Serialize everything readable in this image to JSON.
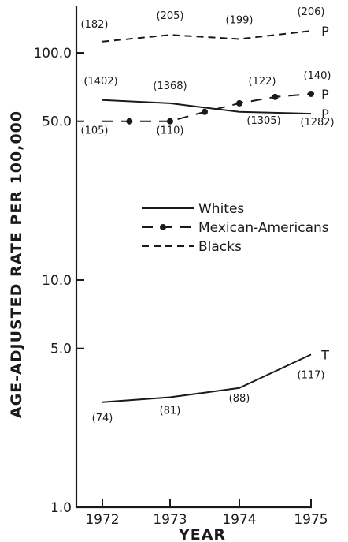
{
  "chart_data": {
    "type": "line",
    "title": "",
    "xlabel": "YEAR",
    "ylabel": "AGE-ADJUSTED RATE PER 100,000",
    "y_scale": "log",
    "ylim": [
      1.0,
      180
    ],
    "y_ticks": [
      {
        "value": 1.0,
        "label": "1.0"
      },
      {
        "value": 5.0,
        "label": "5.0"
      },
      {
        "value": 10.0,
        "label": "10.0"
      },
      {
        "value": 50.0,
        "label": "50.0"
      },
      {
        "value": 100.0,
        "label": "100.0"
      }
    ],
    "x_ticks": [
      {
        "value": 1972,
        "label": "1972"
      },
      {
        "value": 1973,
        "label": "1973"
      },
      {
        "value": 1974,
        "label": "1974"
      },
      {
        "value": 1975,
        "label": "1975"
      }
    ],
    "legend": {
      "placement": "middle-right",
      "entries": [
        {
          "series": "whites_p",
          "label": "Whites"
        },
        {
          "series": "mexican_p",
          "label": "Mexican-Americans"
        },
        {
          "series": "blacks_p",
          "label": "Blacks"
        }
      ]
    },
    "series": [
      {
        "id": "blacks_p",
        "name": "Blacks",
        "style": "dashed",
        "end_label": "P",
        "points": [
          {
            "x": 1972,
            "y": 112
          },
          {
            "x": 1973,
            "y": 120
          },
          {
            "x": 1974,
            "y": 115
          },
          {
            "x": 1975,
            "y": 125
          }
        ],
        "labels": [
          {
            "x": 1972,
            "text": "(182)"
          },
          {
            "x": 1973,
            "text": "(205)"
          },
          {
            "x": 1974,
            "text": "(199)"
          },
          {
            "x": 1975,
            "text": "(206)"
          }
        ]
      },
      {
        "id": "whites_p",
        "name": "Whites",
        "style": "solid",
        "end_label": "P",
        "points": [
          {
            "x": 1972,
            "y": 62
          },
          {
            "x": 1973,
            "y": 60
          },
          {
            "x": 1974,
            "y": 55
          },
          {
            "x": 1975,
            "y": 54
          }
        ],
        "labels": [
          {
            "x": 1972,
            "text": "(1402)"
          },
          {
            "x": 1973,
            "text": "(1368)"
          },
          {
            "x": 1974,
            "text": "(1305)"
          },
          {
            "x": 1975,
            "text": "(1282)"
          }
        ]
      },
      {
        "id": "mexican_p",
        "name": "Mexican-Americans",
        "style": "dash-dot",
        "end_label": "P",
        "points": [
          {
            "x": 1972,
            "y": 50
          },
          {
            "x": 1972.4,
            "y": 50
          },
          {
            "x": 1973,
            "y": 50
          },
          {
            "x": 1973.5,
            "y": 55
          },
          {
            "x": 1974,
            "y": 60
          },
          {
            "x": 1974.5,
            "y": 64
          },
          {
            "x": 1975,
            "y": 66
          }
        ],
        "labels": [
          {
            "x": 1972,
            "text": "(105)"
          },
          {
            "x": 1973,
            "text": "(110)"
          },
          {
            "x": 1974,
            "text": "(122)"
          },
          {
            "x": 1975,
            "text": "(140)"
          }
        ]
      },
      {
        "id": "whites_t",
        "name": "Whites",
        "style": "solid",
        "end_label": "T",
        "points": [
          {
            "x": 1972,
            "y": 2.9
          },
          {
            "x": 1973,
            "y": 3.05
          },
          {
            "x": 1974,
            "y": 3.35
          },
          {
            "x": 1975,
            "y": 4.7
          }
        ],
        "labels": [
          {
            "x": 1972,
            "text": "(74)"
          },
          {
            "x": 1973,
            "text": "(81)"
          },
          {
            "x": 1974,
            "text": "(88)"
          },
          {
            "x": 1975,
            "text": "(117)"
          }
        ]
      }
    ]
  }
}
